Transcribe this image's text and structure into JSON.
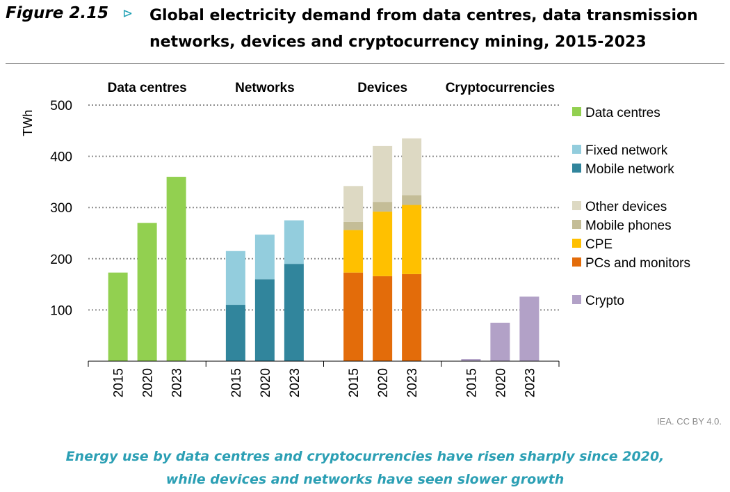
{
  "figure": {
    "label": "Figure 2.15",
    "marker": "⊳",
    "title": "Global electricity demand from data centres, data transmission networks, devices and cryptocurrency mining, 2015-2023",
    "credit": "IEA. CC BY 4.0.",
    "caption_line1": "Energy use by data centres and cryptocurrencies have risen sharply since 2020,",
    "caption_line2": "while devices and networks have seen slower growth"
  },
  "chart_data": {
    "type": "bar",
    "stacked": true,
    "ylabel": "TWh",
    "ylim": [
      0,
      500
    ],
    "yticks": [
      100,
      200,
      300,
      400,
      500
    ],
    "grid": true,
    "legend_position": "right",
    "groups": [
      {
        "name": "Data centres",
        "categories": [
          "2015",
          "2020",
          "2023"
        ],
        "series": [
          {
            "name": "Data centres",
            "color": "#92d050",
            "values": [
              173,
              270,
              360
            ]
          }
        ]
      },
      {
        "name": "Networks",
        "categories": [
          "2015",
          "2020",
          "2023"
        ],
        "series": [
          {
            "name": "Mobile network",
            "color": "#31859c",
            "values": [
              110,
              160,
              190
            ]
          },
          {
            "name": "Fixed network",
            "color": "#93cddd",
            "values": [
              105,
              87,
              85
            ]
          }
        ]
      },
      {
        "name": "Devices",
        "categories": [
          "2015",
          "2020",
          "2023"
        ],
        "series": [
          {
            "name": "PCs and monitors",
            "color": "#e36c0a",
            "values": [
              173,
              166,
              170
            ]
          },
          {
            "name": "CPE",
            "color": "#ffc000",
            "values": [
              83,
              126,
              135
            ]
          },
          {
            "name": "Mobile phones",
            "color": "#c4bd97",
            "values": [
              16,
              19,
              19
            ]
          },
          {
            "name": "Other devices",
            "color": "#ddd9c3",
            "values": [
              70,
              109,
              111
            ]
          }
        ]
      },
      {
        "name": "Cryptocurrencies",
        "categories": [
          "2015",
          "2020",
          "2023"
        ],
        "series": [
          {
            "name": "Crypto",
            "color": "#b2a1c7",
            "values": [
              4,
              75,
              126
            ]
          }
        ]
      }
    ],
    "legend": [
      {
        "name": "Data centres",
        "color": "#92d050",
        "gap_before": false
      },
      {
        "name": "Fixed network",
        "color": "#93cddd",
        "gap_before": true
      },
      {
        "name": "Mobile network",
        "color": "#31859c",
        "gap_before": false
      },
      {
        "name": "Other devices",
        "color": "#ddd9c3",
        "gap_before": true
      },
      {
        "name": "Mobile phones",
        "color": "#c4bd97",
        "gap_before": false
      },
      {
        "name": "CPE",
        "color": "#ffc000",
        "gap_before": false
      },
      {
        "name": "PCs and monitors",
        "color": "#e36c0a",
        "gap_before": false
      },
      {
        "name": "Crypto",
        "color": "#b2a1c7",
        "gap_before": true
      }
    ]
  }
}
